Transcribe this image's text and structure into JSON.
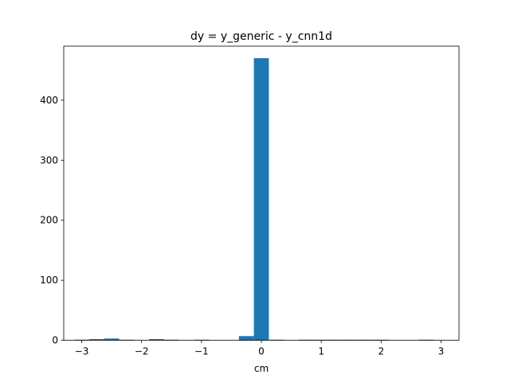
{
  "chart_data": {
    "type": "bar",
    "title": "dy = y_generic - y_cnn1d",
    "xlabel": "cm",
    "ylabel": "",
    "xlim": [
      -3.3,
      3.3
    ],
    "ylim": [
      0,
      490
    ],
    "bin_width": 0.25,
    "x_ticks": [
      -3,
      -2,
      -1,
      0,
      1,
      2,
      3
    ],
    "y_ticks": [
      0,
      100,
      200,
      300,
      400
    ],
    "x_tick_labels": [
      "−3",
      "−2",
      "−1",
      "0",
      "1",
      "2",
      "3"
    ],
    "y_tick_labels": [
      "0",
      "100",
      "200",
      "300",
      "400"
    ],
    "bins": [
      {
        "x": -3.0,
        "count": 1
      },
      {
        "x": -2.75,
        "count": 2
      },
      {
        "x": -2.5,
        "count": 3
      },
      {
        "x": -2.25,
        "count": 1
      },
      {
        "x": -1.75,
        "count": 2
      },
      {
        "x": -1.5,
        "count": 1
      },
      {
        "x": -1.0,
        "count": 1
      },
      {
        "x": -0.25,
        "count": 7
      },
      {
        "x": 0.0,
        "count": 470
      },
      {
        "x": 0.25,
        "count": 1
      },
      {
        "x": 0.75,
        "count": 1
      },
      {
        "x": 1.0,
        "count": 1
      },
      {
        "x": 1.25,
        "count": 1
      },
      {
        "x": 1.5,
        "count": 1
      },
      {
        "x": 1.75,
        "count": 1
      },
      {
        "x": 2.0,
        "count": 1
      },
      {
        "x": 2.75,
        "count": 1
      }
    ],
    "bar_color": "#1f77b4",
    "grid": false,
    "legend": "none"
  }
}
